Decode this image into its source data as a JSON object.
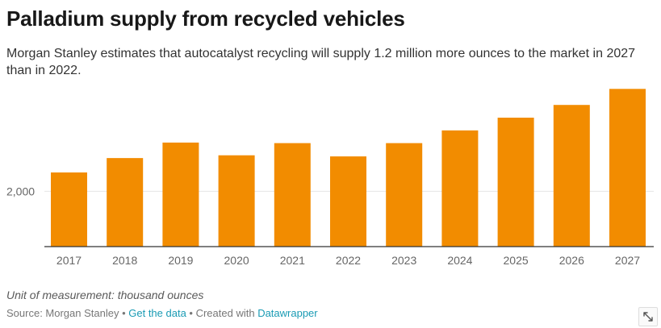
{
  "header": {
    "title": "Palladium supply from recycled vehicles",
    "subtitle": "Morgan Stanley estimates that autocatalyst recycling will supply 1.2 million more ounces to the market in 2027 than in 2022."
  },
  "chart_data": {
    "type": "bar",
    "categories": [
      "2017",
      "2018",
      "2019",
      "2020",
      "2021",
      "2022",
      "2023",
      "2024",
      "2025",
      "2026",
      "2027"
    ],
    "values": [
      2340,
      2600,
      2880,
      2650,
      2870,
      2630,
      2870,
      3100,
      3330,
      3560,
      3850
    ],
    "ylim": [
      1000,
      4000
    ],
    "yticks": [
      2000
    ],
    "ytick_labels": [
      "2,000"
    ],
    "bar_color": "#f28c00",
    "title": "Palladium supply from recycled vehicles",
    "xlabel": "",
    "ylabel": ""
  },
  "notes": {
    "unit": "Unit of measurement: thousand ounces"
  },
  "footer": {
    "source": "Source: Morgan Stanley",
    "sep1": " • ",
    "get_data": "Get the data",
    "sep2": " • Created with ",
    "datawrapper": "Datawrapper"
  },
  "icons": {
    "expand": "expand-icon"
  }
}
